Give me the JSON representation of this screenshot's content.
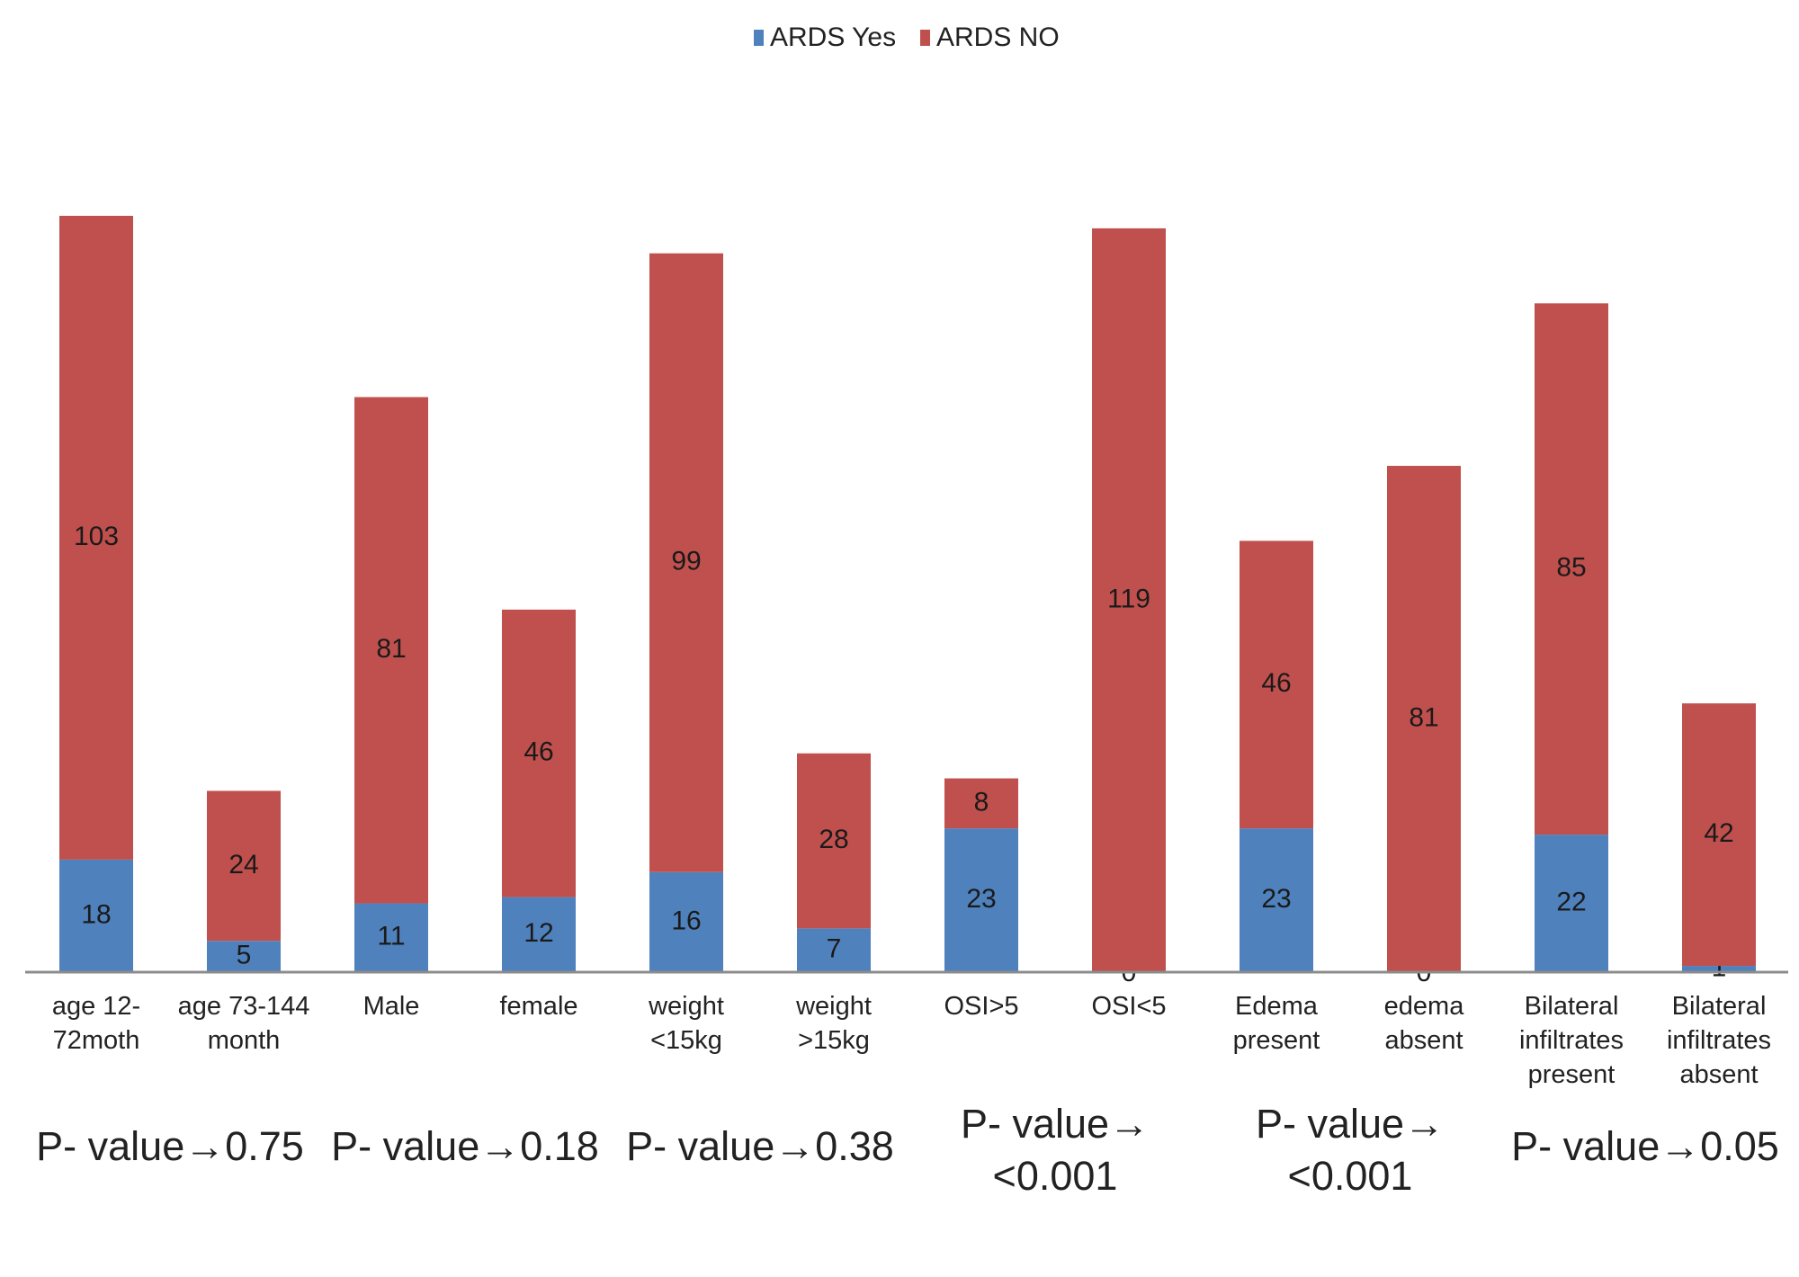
{
  "chart_data": {
    "type": "bar",
    "stacked": true,
    "title": "",
    "xlabel": "",
    "ylabel": "",
    "ylim": [
      0,
      121
    ],
    "grid": false,
    "legend_position": "top-center",
    "categories": [
      [
        "age 12-",
        "72moth"
      ],
      [
        "age 73-144",
        "month"
      ],
      [
        "Male"
      ],
      [
        "female"
      ],
      [
        "weight",
        "<15kg"
      ],
      [
        "weight",
        ">15kg"
      ],
      [
        "OSI>5"
      ],
      [
        "OSI<5"
      ],
      [
        "Edema",
        "present"
      ],
      [
        "edema",
        "absent"
      ],
      [
        "Bilateral",
        "infiltrates",
        "present"
      ],
      [
        "Bilateral",
        "infiltrates",
        "absent"
      ]
    ],
    "series": [
      {
        "name": "ARDS Yes",
        "color": "#4f81bd",
        "values": [
          18,
          5,
          11,
          12,
          16,
          7,
          23,
          0,
          23,
          0,
          22,
          1
        ]
      },
      {
        "name": "ARDS NO",
        "color": "#c0504d",
        "values": [
          103,
          24,
          81,
          46,
          99,
          28,
          8,
          119,
          46,
          81,
          85,
          42
        ]
      }
    ],
    "p_values": [
      {
        "lines": [
          "P- value→0.75"
        ],
        "group": [
          0,
          1
        ]
      },
      {
        "lines": [
          "P- value→0.18"
        ],
        "group": [
          2,
          3
        ]
      },
      {
        "lines": [
          "P- value→0.38"
        ],
        "group": [
          4,
          5
        ]
      },
      {
        "lines": [
          "P- value→",
          "<0.001"
        ],
        "group": [
          6,
          7
        ]
      },
      {
        "lines": [
          "P- value→",
          "<0.001"
        ],
        "group": [
          8,
          9
        ]
      },
      {
        "lines": [
          "P- value→0.05"
        ],
        "group": [
          10,
          11
        ]
      }
    ]
  }
}
